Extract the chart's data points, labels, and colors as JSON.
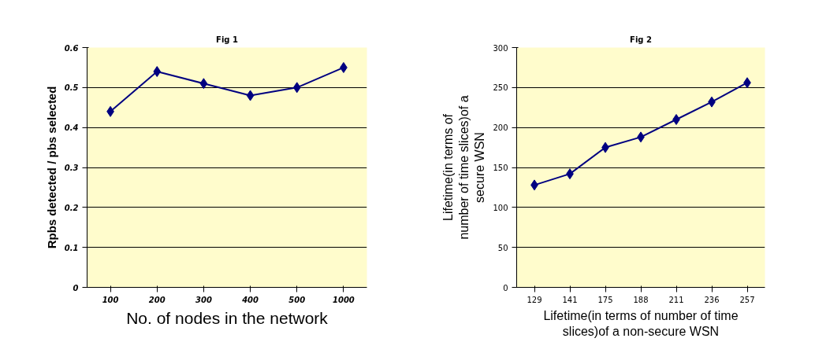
{
  "chart_data": [
    {
      "type": "line",
      "title": "Fig 1",
      "xlabel": "No. of nodes in the network",
      "ylabel": "Rpbs detected / pbs selected",
      "categories": [
        "100",
        "200",
        "300",
        "400",
        "500",
        "1000"
      ],
      "series": [
        {
          "color": "#000080",
          "values": [
            0.44,
            0.54,
            0.51,
            0.48,
            0.5,
            0.55
          ]
        }
      ],
      "ylim": [
        0,
        0.6
      ],
      "yticks": [
        {
          "value": 0,
          "label": "0"
        },
        {
          "value": 0.1,
          "label": "0.1"
        },
        {
          "value": 0.2,
          "label": "0.2"
        },
        {
          "value": 0.3,
          "label": "0.3"
        },
        {
          "value": 0.4,
          "label": "0.4"
        },
        {
          "value": 0.5,
          "label": "0.5"
        },
        {
          "value": 0.6,
          "label": "0.6"
        }
      ],
      "grid": "y",
      "marker": "diamond",
      "line_style": "solid"
    },
    {
      "type": "line",
      "title": "Fig 2",
      "xlabel": "Lifetime(in terms of number of time slices)of a non-secure WSN",
      "ylabel": "Lifetime(in terms of number of time slices)of a secure WSN",
      "categories": [
        "129",
        "141",
        "175",
        "188",
        "211",
        "236",
        "257"
      ],
      "series": [
        {
          "color": "#000080",
          "values": [
            128,
            142,
            175,
            188,
            210,
            232,
            256
          ]
        }
      ],
      "ylim": [
        0,
        300
      ],
      "yticks": [
        0,
        50,
        100,
        150,
        200,
        250,
        300
      ],
      "grid": "y",
      "marker": "diamond",
      "line_style": "solid"
    }
  ]
}
